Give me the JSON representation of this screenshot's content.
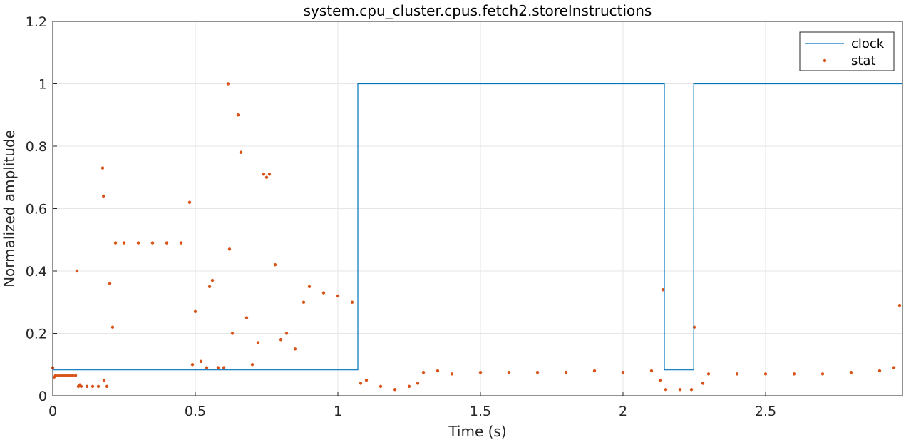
{
  "chart_data": {
    "type": "line",
    "title": "system.cpu_cluster.cpus.fetch2.storeInstructions",
    "xlabel": "Time (s)",
    "ylabel": "Normalized amplitude",
    "xlim": [
      0,
      2.98
    ],
    "ylim": [
      0,
      1.2
    ],
    "xticks": [
      0,
      0.5,
      1,
      1.5,
      2,
      2.5
    ],
    "xtick_labels": [
      "0",
      "0.5",
      "1",
      "1.5",
      "2",
      "2.5"
    ],
    "yticks": [
      0,
      0.2,
      0.4,
      0.6,
      0.8,
      1,
      1.2
    ],
    "ytick_labels": [
      "0",
      "0.2",
      "0.4",
      "0.6",
      "0.8",
      "1",
      "1.2"
    ],
    "grid": true,
    "legend_position": "top-right",
    "colors": {
      "clock": "#0072BD",
      "stat": "#D95319",
      "grid": "#e6e6e6",
      "axis": "#262626"
    },
    "series": [
      {
        "name": "clock",
        "style": "line",
        "x": [
          0,
          1.07,
          1.07,
          2.145,
          2.145,
          2.248,
          2.248,
          2.98
        ],
        "y": [
          0.083,
          0.083,
          1,
          1,
          0.083,
          0.083,
          1,
          1
        ]
      },
      {
        "name": "stat",
        "style": "markers",
        "x": [
          0.0,
          0.005,
          0.01,
          0.02,
          0.03,
          0.04,
          0.05,
          0.06,
          0.07,
          0.08,
          0.085,
          0.09,
          0.095,
          0.1,
          0.12,
          0.14,
          0.16,
          0.175,
          0.178,
          0.18,
          0.19,
          0.2,
          0.21,
          0.22,
          0.25,
          0.3,
          0.35,
          0.4,
          0.45,
          0.48,
          0.49,
          0.5,
          0.52,
          0.54,
          0.55,
          0.56,
          0.58,
          0.6,
          0.615,
          0.62,
          0.63,
          0.65,
          0.66,
          0.68,
          0.7,
          0.72,
          0.74,
          0.75,
          0.76,
          0.78,
          0.8,
          0.82,
          0.85,
          0.88,
          0.9,
          0.95,
          1.0,
          1.05,
          1.08,
          1.1,
          1.15,
          1.2,
          1.25,
          1.28,
          1.3,
          1.35,
          1.4,
          1.5,
          1.6,
          1.7,
          1.8,
          1.9,
          2.0,
          2.1,
          2.13,
          2.14,
          2.15,
          2.2,
          2.24,
          2.25,
          2.28,
          2.3,
          2.4,
          2.5,
          2.6,
          2.7,
          2.8,
          2.9,
          2.95,
          2.97
        ],
        "y": [
          0.09,
          0.06,
          0.065,
          0.065,
          0.065,
          0.065,
          0.065,
          0.065,
          0.065,
          0.065,
          0.4,
          0.03,
          0.035,
          0.03,
          0.03,
          0.03,
          0.03,
          0.73,
          0.64,
          0.05,
          0.03,
          0.36,
          0.22,
          0.49,
          0.49,
          0.49,
          0.49,
          0.49,
          0.49,
          0.62,
          0.1,
          0.27,
          0.11,
          0.09,
          0.35,
          0.37,
          0.09,
          0.09,
          1.0,
          0.47,
          0.2,
          0.9,
          0.78,
          0.25,
          0.1,
          0.17,
          0.71,
          0.7,
          0.71,
          0.42,
          0.18,
          0.2,
          0.15,
          0.3,
          0.35,
          0.33,
          0.32,
          0.3,
          0.04,
          0.05,
          0.03,
          0.02,
          0.03,
          0.04,
          0.075,
          0.08,
          0.07,
          0.075,
          0.075,
          0.075,
          0.075,
          0.08,
          0.075,
          0.08,
          0.05,
          0.34,
          0.02,
          0.02,
          0.02,
          0.22,
          0.04,
          0.07,
          0.07,
          0.07,
          0.07,
          0.07,
          0.075,
          0.08,
          0.09,
          0.29
        ]
      }
    ]
  }
}
